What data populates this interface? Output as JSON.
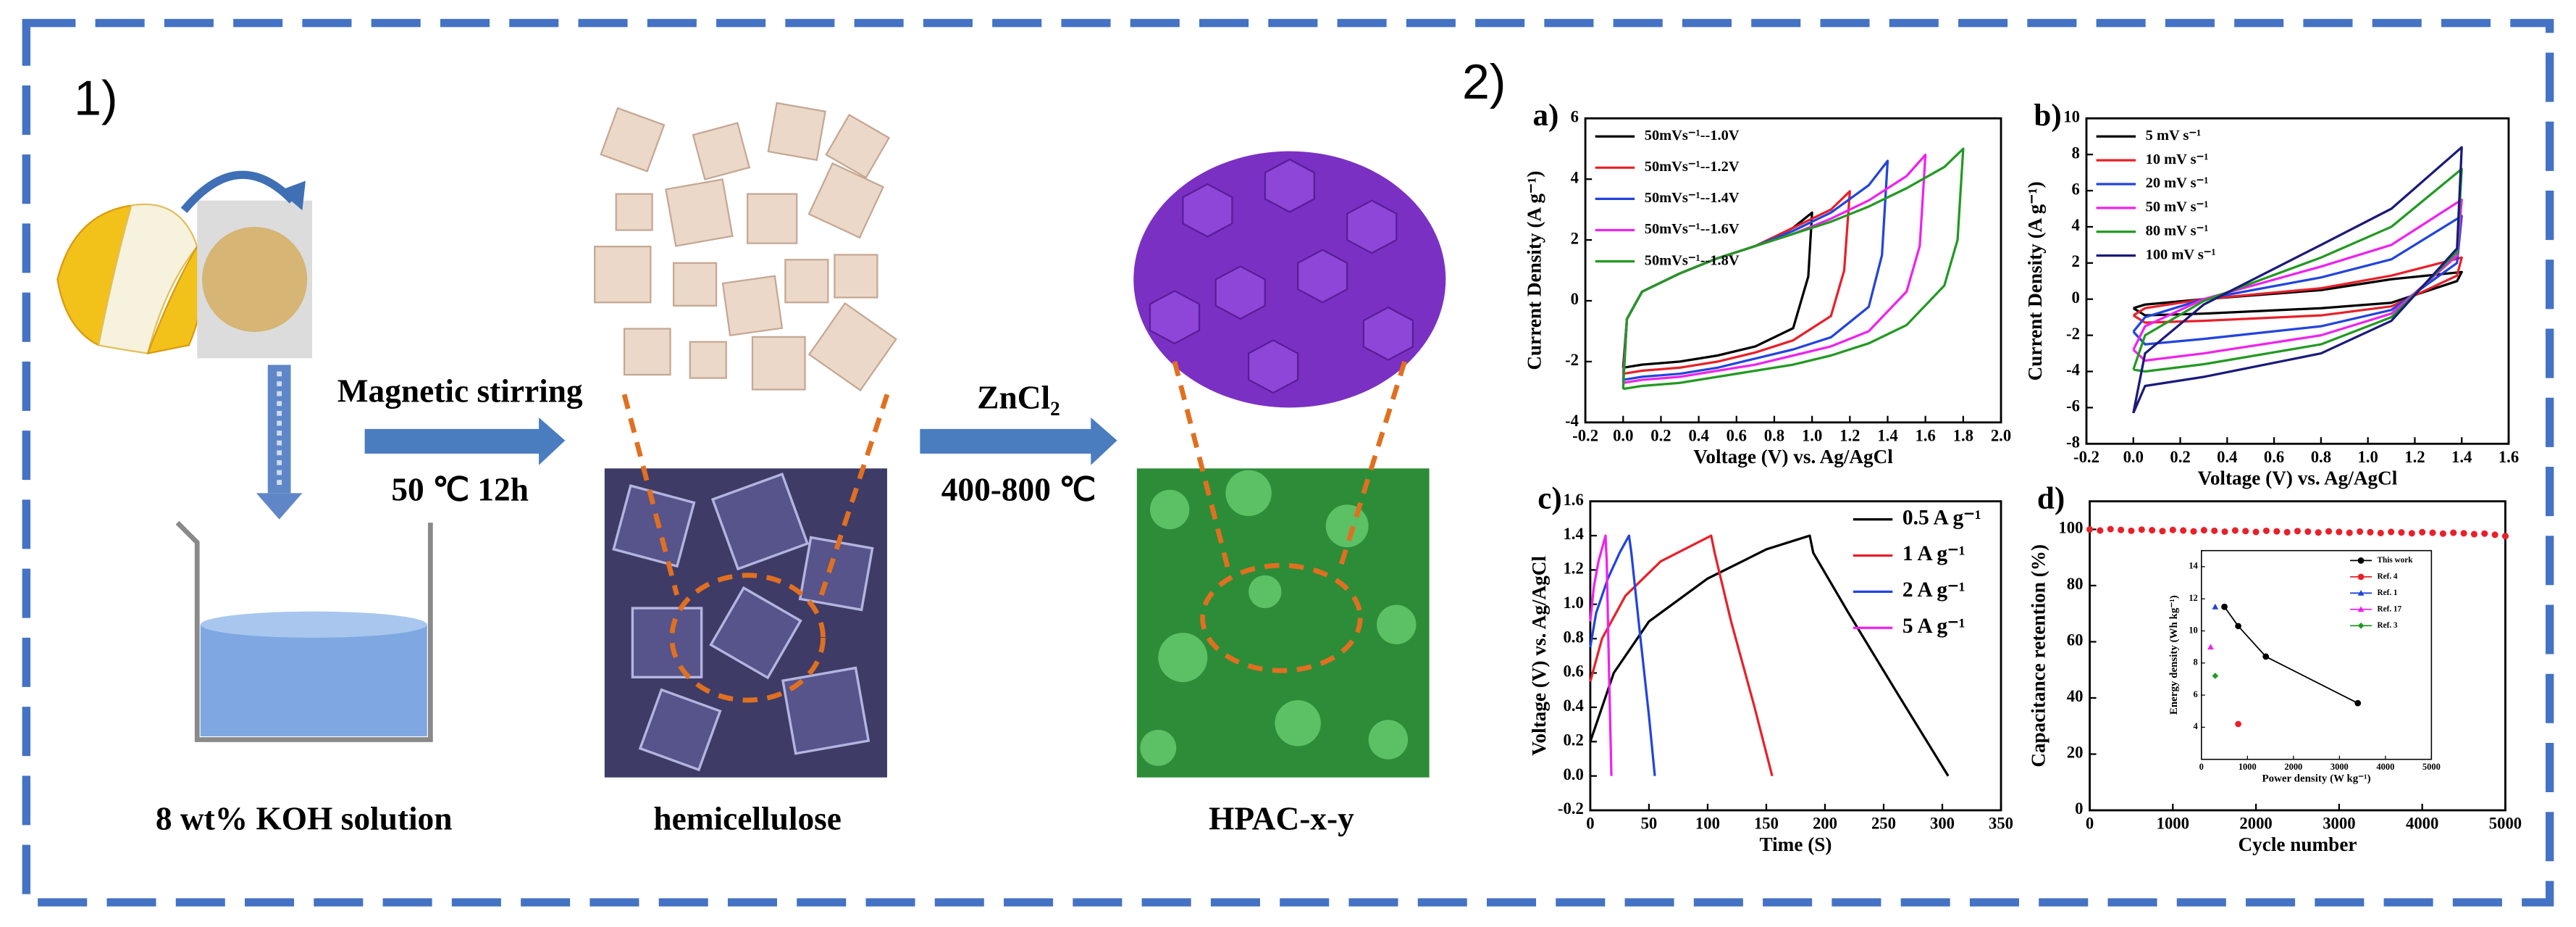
{
  "diagram": {
    "label": "1)",
    "beaker_label": "8 wt% KOH solution",
    "step1": {
      "reagent": "Magnetic stirring",
      "condition": "50 ℃ 12h"
    },
    "intermediate": "hemicellulose",
    "step2": {
      "reagent": "ZnCl₂",
      "condition": "400-800 ℃"
    },
    "product": "HPAC-x-y"
  },
  "panel_2_label": "2)",
  "chart_data": [
    {
      "type": "line",
      "label": "a)",
      "xlabel": "Voltage (V) vs. Ag/AgCl",
      "ylabel": "Current Density (A g⁻¹)",
      "xlim": [
        -0.2,
        2.0
      ],
      "ylim": [
        -4,
        6
      ],
      "xticks": [
        -0.2,
        {
          "value": 0,
          "label": "0.0"
        },
        0.2,
        0.4,
        0.6,
        0.8,
        {
          "value": 1,
          "label": "1.0"
        },
        1.2,
        1.4,
        1.6,
        1.8,
        {
          "value": 2,
          "label": "2.0"
        }
      ],
      "yticks": [
        -4,
        -2,
        0,
        2,
        4,
        6
      ],
      "legend": "upper left",
      "series": [
        {
          "name": "50mVs⁻¹--1.0V",
          "color": "#000000",
          "x": [
            0,
            0.02,
            0.1,
            0.3,
            0.5,
            0.7,
            0.9,
            1.0,
            0.98,
            0.9,
            0.7,
            0.5,
            0.3,
            0.1,
            0
          ],
          "values": [
            -2.2,
            -0.6,
            0.3,
            0.9,
            1.4,
            1.8,
            2.4,
            2.9,
            0.8,
            -0.9,
            -1.5,
            -1.8,
            -2.0,
            -2.1,
            -2.2
          ]
        },
        {
          "name": "50mVs⁻¹--1.2V",
          "color": "#e8202a",
          "x": [
            0,
            0.02,
            0.1,
            0.3,
            0.5,
            0.7,
            0.9,
            1.1,
            1.2,
            1.17,
            1.1,
            0.9,
            0.7,
            0.5,
            0.3,
            0.1,
            0
          ],
          "values": [
            -2.4,
            -0.6,
            0.3,
            0.9,
            1.4,
            1.8,
            2.4,
            3.0,
            3.6,
            1.0,
            -0.5,
            -1.3,
            -1.7,
            -2.0,
            -2.2,
            -2.3,
            -2.4
          ]
        },
        {
          "name": "50mVs⁻¹--1.4V",
          "color": "#2244dd",
          "x": [
            0,
            0.02,
            0.1,
            0.3,
            0.5,
            0.7,
            0.9,
            1.1,
            1.3,
            1.4,
            1.37,
            1.3,
            1.1,
            0.9,
            0.7,
            0.5,
            0.3,
            0.1,
            0
          ],
          "values": [
            -2.6,
            -0.6,
            0.3,
            0.9,
            1.4,
            1.8,
            2.3,
            2.9,
            3.8,
            4.6,
            1.5,
            -0.2,
            -1.2,
            -1.6,
            -1.9,
            -2.2,
            -2.4,
            -2.5,
            -2.6
          ]
        },
        {
          "name": "50mVs⁻¹--1.6V",
          "color": "#ee22ee",
          "x": [
            0,
            0.02,
            0.1,
            0.3,
            0.5,
            0.7,
            0.9,
            1.1,
            1.3,
            1.5,
            1.6,
            1.57,
            1.5,
            1.3,
            1.1,
            0.9,
            0.7,
            0.5,
            0.3,
            0.1,
            0
          ],
          "values": [
            -2.7,
            -0.6,
            0.3,
            0.9,
            1.4,
            1.8,
            2.2,
            2.7,
            3.3,
            4.1,
            4.8,
            1.8,
            0.3,
            -1.0,
            -1.5,
            -1.8,
            -2.1,
            -2.3,
            -2.5,
            -2.6,
            -2.7
          ]
        },
        {
          "name": "50mVs⁻¹--1.8V",
          "color": "#229922",
          "x": [
            0,
            0.02,
            0.1,
            0.3,
            0.5,
            0.7,
            0.9,
            1.1,
            1.3,
            1.5,
            1.7,
            1.8,
            1.77,
            1.7,
            1.5,
            1.3,
            1.1,
            0.9,
            0.7,
            0.5,
            0.3,
            0.1,
            0
          ],
          "values": [
            -2.9,
            -0.6,
            0.3,
            0.9,
            1.4,
            1.8,
            2.2,
            2.6,
            3.1,
            3.7,
            4.4,
            5.0,
            2.0,
            0.5,
            -0.8,
            -1.4,
            -1.8,
            -2.1,
            -2.3,
            -2.5,
            -2.7,
            -2.8,
            -2.9
          ]
        }
      ]
    },
    {
      "type": "line",
      "label": "b)",
      "xlabel": "Voltage (V) vs. Ag/AgCl",
      "ylabel": "Current Density (A g⁻¹)",
      "xlim": [
        -0.2,
        1.6
      ],
      "ylim": [
        -8,
        10
      ],
      "xticks": [
        -0.2,
        {
          "value": 0,
          "label": "0.0"
        },
        0.2,
        0.4,
        0.6,
        0.8,
        {
          "value": 1,
          "label": "1.0"
        },
        1.2,
        1.4,
        1.6
      ],
      "yticks": [
        -8,
        -6,
        -4,
        -2,
        0,
        2,
        4,
        6,
        8,
        10
      ],
      "legend": "upper left",
      "x": [
        0,
        0.05,
        0.3,
        0.8,
        1.1,
        1.4,
        1.38,
        1.1,
        0.8,
        0.3,
        0.05,
        0
      ],
      "series": [
        {
          "name": "5 mV s⁻¹",
          "color": "#000000",
          "values": [
            -0.5,
            -0.3,
            0,
            0.5,
            1.1,
            1.5,
            1.0,
            -0.2,
            -0.5,
            -0.8,
            -0.9,
            -0.5
          ]
        },
        {
          "name": "10 mV s⁻¹",
          "color": "#e8202a",
          "values": [
            -0.9,
            -0.5,
            0,
            0.6,
            1.3,
            2.3,
            1.3,
            -0.4,
            -0.9,
            -1.2,
            -1.3,
            -0.9
          ]
        },
        {
          "name": "20 mV s⁻¹",
          "color": "#2244dd",
          "values": [
            -1.8,
            -1.0,
            0,
            1.2,
            2.2,
            4.6,
            2.0,
            -0.6,
            -1.5,
            -2.2,
            -2.5,
            -1.8
          ]
        },
        {
          "name": "50 mV s⁻¹",
          "color": "#ee22ee",
          "values": [
            -2.8,
            -1.5,
            0,
            1.8,
            3.0,
            5.5,
            2.4,
            -0.8,
            -2.0,
            -3.0,
            -3.4,
            -2.8
          ]
        },
        {
          "name": "80 mV s⁻¹",
          "color": "#229922",
          "values": [
            -3.9,
            -2.0,
            -0.1,
            2.3,
            4.0,
            7.2,
            2.6,
            -1.0,
            -2.5,
            -3.6,
            -4.0,
            -3.9
          ]
        },
        {
          "name": "100 mV s⁻¹",
          "color": "#1a1a7a",
          "values": [
            -6.3,
            -3.0,
            -0.3,
            3.0,
            5.0,
            8.4,
            2.8,
            -1.2,
            -3.0,
            -4.3,
            -4.8,
            -6.3
          ]
        }
      ]
    },
    {
      "type": "line",
      "label": "c)",
      "xlabel": "Time (S)",
      "ylabel": "Voltage (V) vs. Ag/AgCl",
      "xlim": [
        0,
        350
      ],
      "ylim": [
        -0.2,
        1.6
      ],
      "xticks": [
        0,
        50,
        100,
        150,
        200,
        250,
        300,
        350
      ],
      "yticks": [
        -0.2,
        {
          "value": 0,
          "label": "0.0"
        },
        0.2,
        0.4,
        0.6,
        0.8,
        {
          "value": 1,
          "label": "1.0"
        },
        1.2,
        1.4,
        1.6
      ],
      "legend": "upper right",
      "series": [
        {
          "name": "0.5 A g⁻¹",
          "color": "#000000",
          "x": [
            0,
            20,
            50,
            100,
            150,
            187,
            190,
            220,
            260,
            305
          ],
          "values": [
            0.2,
            0.6,
            0.9,
            1.15,
            1.32,
            1.4,
            1.3,
            0.95,
            0.5,
            0.0
          ]
        },
        {
          "name": "1 A g⁻¹",
          "color": "#e8202a",
          "x": [
            0,
            10,
            30,
            60,
            103,
            106,
            120,
            140,
            155
          ],
          "values": [
            0.55,
            0.8,
            1.05,
            1.25,
            1.4,
            1.3,
            0.9,
            0.4,
            0
          ]
        },
        {
          "name": "2 A g⁻¹",
          "color": "#2244dd",
          "x": [
            0,
            5,
            15,
            25,
            33,
            35,
            42,
            50,
            55
          ],
          "values": [
            0.75,
            0.95,
            1.15,
            1.3,
            1.4,
            1.3,
            0.85,
            0.35,
            0
          ]
        },
        {
          "name": "5 A g⁻¹",
          "color": "#ee22ee",
          "x": [
            0,
            3,
            7,
            11,
            13,
            14,
            16,
            18
          ],
          "values": [
            0.9,
            1.1,
            1.25,
            1.35,
            1.4,
            1.25,
            0.6,
            0.0
          ]
        }
      ]
    },
    {
      "type": "scatter",
      "label": "d)",
      "xlabel": "Cycle number",
      "ylabel": "Capacitance retention (%)",
      "xlim": [
        0,
        5000
      ],
      "ylim": [
        0,
        110
      ],
      "xticks": [
        0,
        1000,
        2000,
        3000,
        4000,
        5000
      ],
      "yticks": [
        0,
        20,
        40,
        60,
        80,
        100
      ],
      "color": "#e8202a",
      "x": [
        0,
        125,
        250,
        375,
        500,
        625,
        750,
        875,
        1000,
        1125,
        1250,
        1375,
        1500,
        1625,
        1750,
        1875,
        2000,
        2125,
        2250,
        2375,
        2500,
        2625,
        2750,
        2875,
        3000,
        3125,
        3250,
        3375,
        3500,
        3625,
        3750,
        3875,
        4000,
        4125,
        4250,
        4375,
        4500,
        4625,
        4750,
        4875,
        5000
      ],
      "values": [
        100,
        99.6,
        100.1,
        99.8,
        99.5,
        99.9,
        99.7,
        99.4,
        99.8,
        99.6,
        99.3,
        99.7,
        99.5,
        99.2,
        99.6,
        99.4,
        99.1,
        99.5,
        99.3,
        99.0,
        99.4,
        99.2,
        98.9,
        99.3,
        99.1,
        98.8,
        99.2,
        99.0,
        98.7,
        99.1,
        98.9,
        98.6,
        99.0,
        98.8,
        98.5,
        98.8,
        98.6,
        98.3,
        98.5,
        98.1,
        97.6
      ]
    },
    {
      "type": "line",
      "xlabel": "Power density (W kg⁻¹)",
      "ylabel": "Energy density (Wh kg⁻¹)",
      "xlim": [
        0,
        5000
      ],
      "ylim": [
        2,
        15
      ],
      "xticks": [
        0,
        1000,
        2000,
        3000,
        4000,
        5000
      ],
      "yticks": [
        4,
        6,
        8,
        10,
        12,
        14
      ],
      "legend": "upper right",
      "series": [
        {
          "name": "This work",
          "color": "#000000",
          "marker": "circle",
          "x": [
            500,
            800,
            1400,
            3400
          ],
          "values": [
            11.5,
            10.3,
            8.4,
            5.5
          ]
        },
        {
          "name": "Ref. 4",
          "color": "#e8202a",
          "marker": "circle",
          "x": [
            800
          ],
          "values": [
            4.2
          ]
        },
        {
          "name": "Ref. 1",
          "color": "#2244dd",
          "marker": "triangle",
          "x": [
            300
          ],
          "values": [
            11.5
          ]
        },
        {
          "name": "Ref. 17",
          "color": "#ee22ee",
          "marker": "triangle",
          "x": [
            200
          ],
          "values": [
            9.0
          ]
        },
        {
          "name": "Ref. 3",
          "color": "#229922",
          "marker": "diamond",
          "x": [
            300
          ],
          "values": [
            7.2
          ]
        }
      ]
    }
  ]
}
